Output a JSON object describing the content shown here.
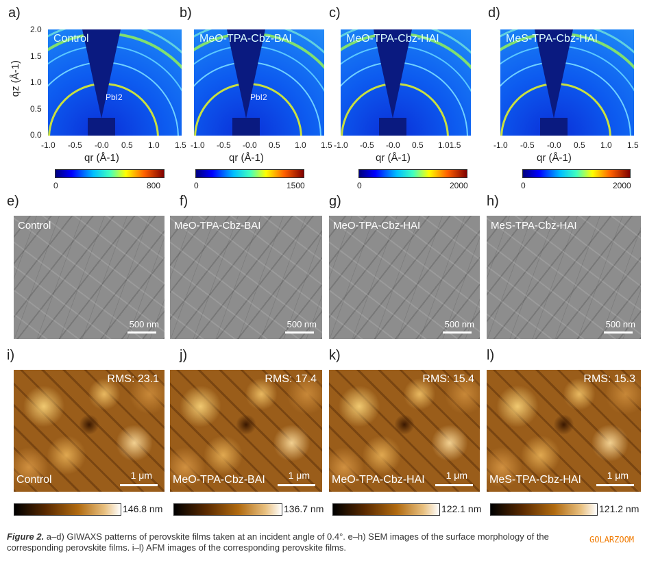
{
  "giwaxs": [
    {
      "label": "a)",
      "name": "Control",
      "cbar_min": "0",
      "cbar_max": "800",
      "pbi2": true
    },
    {
      "label": "b)",
      "name": "MeO-TPA-Cbz-BAI",
      "cbar_min": "0",
      "cbar_max": "1500",
      "pbi2": true
    },
    {
      "label": "c)",
      "name": "MeO-TPA-Cbz-HAI",
      "cbar_min": "0",
      "cbar_max": "2000",
      "pbi2": false
    },
    {
      "label": "d)",
      "name": "MeS-TPA-Cbz-HAI",
      "cbar_min": "0",
      "cbar_max": "2000",
      "pbi2": false
    }
  ],
  "pbi2_label": "PbI2",
  "y_axis_label": "qz (Å-1)",
  "x_axis_label": "qr (Å-1)",
  "y_ticks": [
    "2.0",
    "1.5",
    "1.0",
    "0.5",
    "0.0"
  ],
  "x_ticks": [
    "-1.0",
    "-0.5",
    "-0.0",
    "0.5",
    "1.0",
    "1.5"
  ],
  "x_ticks_c": [
    "-1.0",
    "-0.5",
    "-0.0",
    "0.5",
    "1.01.5"
  ],
  "sem": [
    {
      "label": "e)",
      "name": "Control",
      "scale": "500 nm"
    },
    {
      "label": "f)",
      "name": "MeO-TPA-Cbz-BAI",
      "scale": "500 nm"
    },
    {
      "label": "g)",
      "name": "MeO-TPA-Cbz-HAI",
      "scale": "500 nm"
    },
    {
      "label": "h)",
      "name": "MeS-TPA-Cbz-HAI",
      "scale": "500 nm"
    }
  ],
  "afm": [
    {
      "label": "i)",
      "name": "Control",
      "rms": "RMS: 23.1",
      "scale": "1 μm",
      "max": "146.8 nm"
    },
    {
      "label": "j)",
      "name": "MeO-TPA-Cbz-BAI",
      "rms": "RMS: 17.4",
      "scale": "1 μm",
      "max": "136.7 nm"
    },
    {
      "label": "k)",
      "name": "MeO-TPA-Cbz-HAI",
      "rms": "RMS: 15.4",
      "scale": "1 μm",
      "max": "122.1 nm"
    },
    {
      "label": "l)",
      "name": "MeS-TPA-Cbz-HAI",
      "rms": "RMS: 15.3",
      "scale": "1 μm",
      "max": "121.2 nm"
    }
  ],
  "caption": {
    "lead": "Figure 2.",
    "text": " a–d) GIWAXS patterns of perovskite films taken at an incident angle of 0.4°. e–h) SEM images of the surface morphology of the corresponding perovskite films. i–l) AFM images of the corresponding perovskite films."
  },
  "watermark": "GOLARZOOM"
}
